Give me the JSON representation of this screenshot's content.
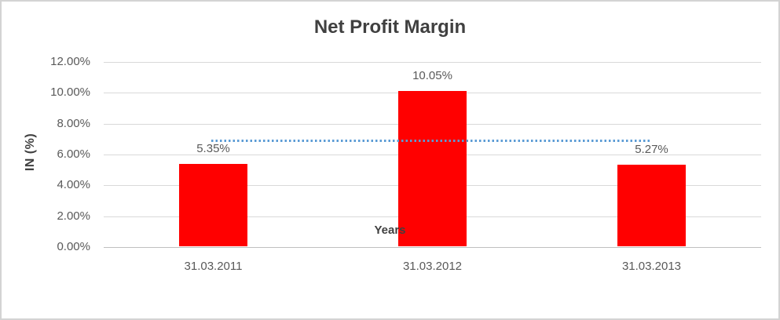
{
  "frame": {
    "border_color": "#D3D3D3",
    "background": "#FFFFFF"
  },
  "chart_data": {
    "type": "bar",
    "title": "Net Profit Margin",
    "xlabel": "Years",
    "ylabel": "IN (%)",
    "categories": [
      "31.03.2011",
      "31.03.2012",
      "31.03.2013"
    ],
    "values": [
      5.35,
      10.05,
      5.27
    ],
    "data_labels": [
      "5.35%",
      "10.05%",
      "5.27%"
    ],
    "ylim": [
      0,
      12
    ],
    "ytick_step": 2,
    "ytick_labels": [
      "0.00%",
      "2.00%",
      "4.00%",
      "6.00%",
      "8.00%",
      "10.00%",
      "12.00%"
    ],
    "grid": true,
    "legend": "none",
    "bar_color": "#FF0000",
    "axis_line_color": "#BFBFBF",
    "gridline_color": "#D9D9D9",
    "text_color": "#595959",
    "title_color": "#404040",
    "trendline": {
      "style": "dotted",
      "color": "#5B9BD5",
      "approx_value": 6.9,
      "from_category": 0,
      "to_category": 2
    }
  }
}
